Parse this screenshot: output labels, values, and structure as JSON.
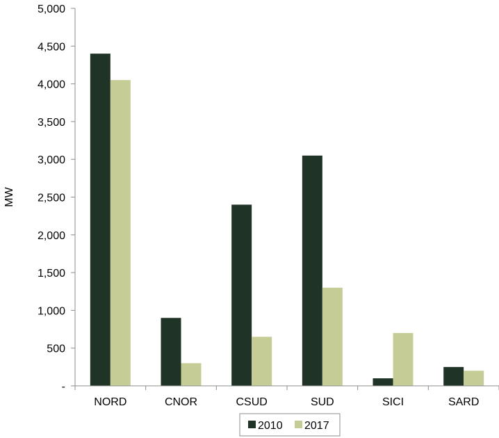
{
  "chart_data": {
    "type": "bar",
    "categories": [
      "NORD",
      "CNOR",
      "CSUD",
      "SUD",
      "SICI",
      "SARD"
    ],
    "series": [
      {
        "name": "2010",
        "values": [
          4400,
          900,
          2400,
          3050,
          100,
          250
        ],
        "color": "#1f3326"
      },
      {
        "name": "2017",
        "values": [
          4050,
          300,
          650,
          1300,
          700,
          200
        ],
        "color": "#c5cc96"
      }
    ],
    "title": "",
    "xlabel": "",
    "ylabel": "MW",
    "ylim": [
      0,
      5000
    ],
    "yticks": [
      0,
      500,
      1000,
      1500,
      2000,
      2500,
      3000,
      3500,
      4000,
      4500,
      5000
    ],
    "ytick_labels": [
      "-",
      "500",
      "1,000",
      "1,500",
      "2,000",
      "2,500",
      "3,000",
      "3,500",
      "4,000",
      "4,500",
      "5,000"
    ],
    "grid": false,
    "legend": "bottom-center"
  }
}
